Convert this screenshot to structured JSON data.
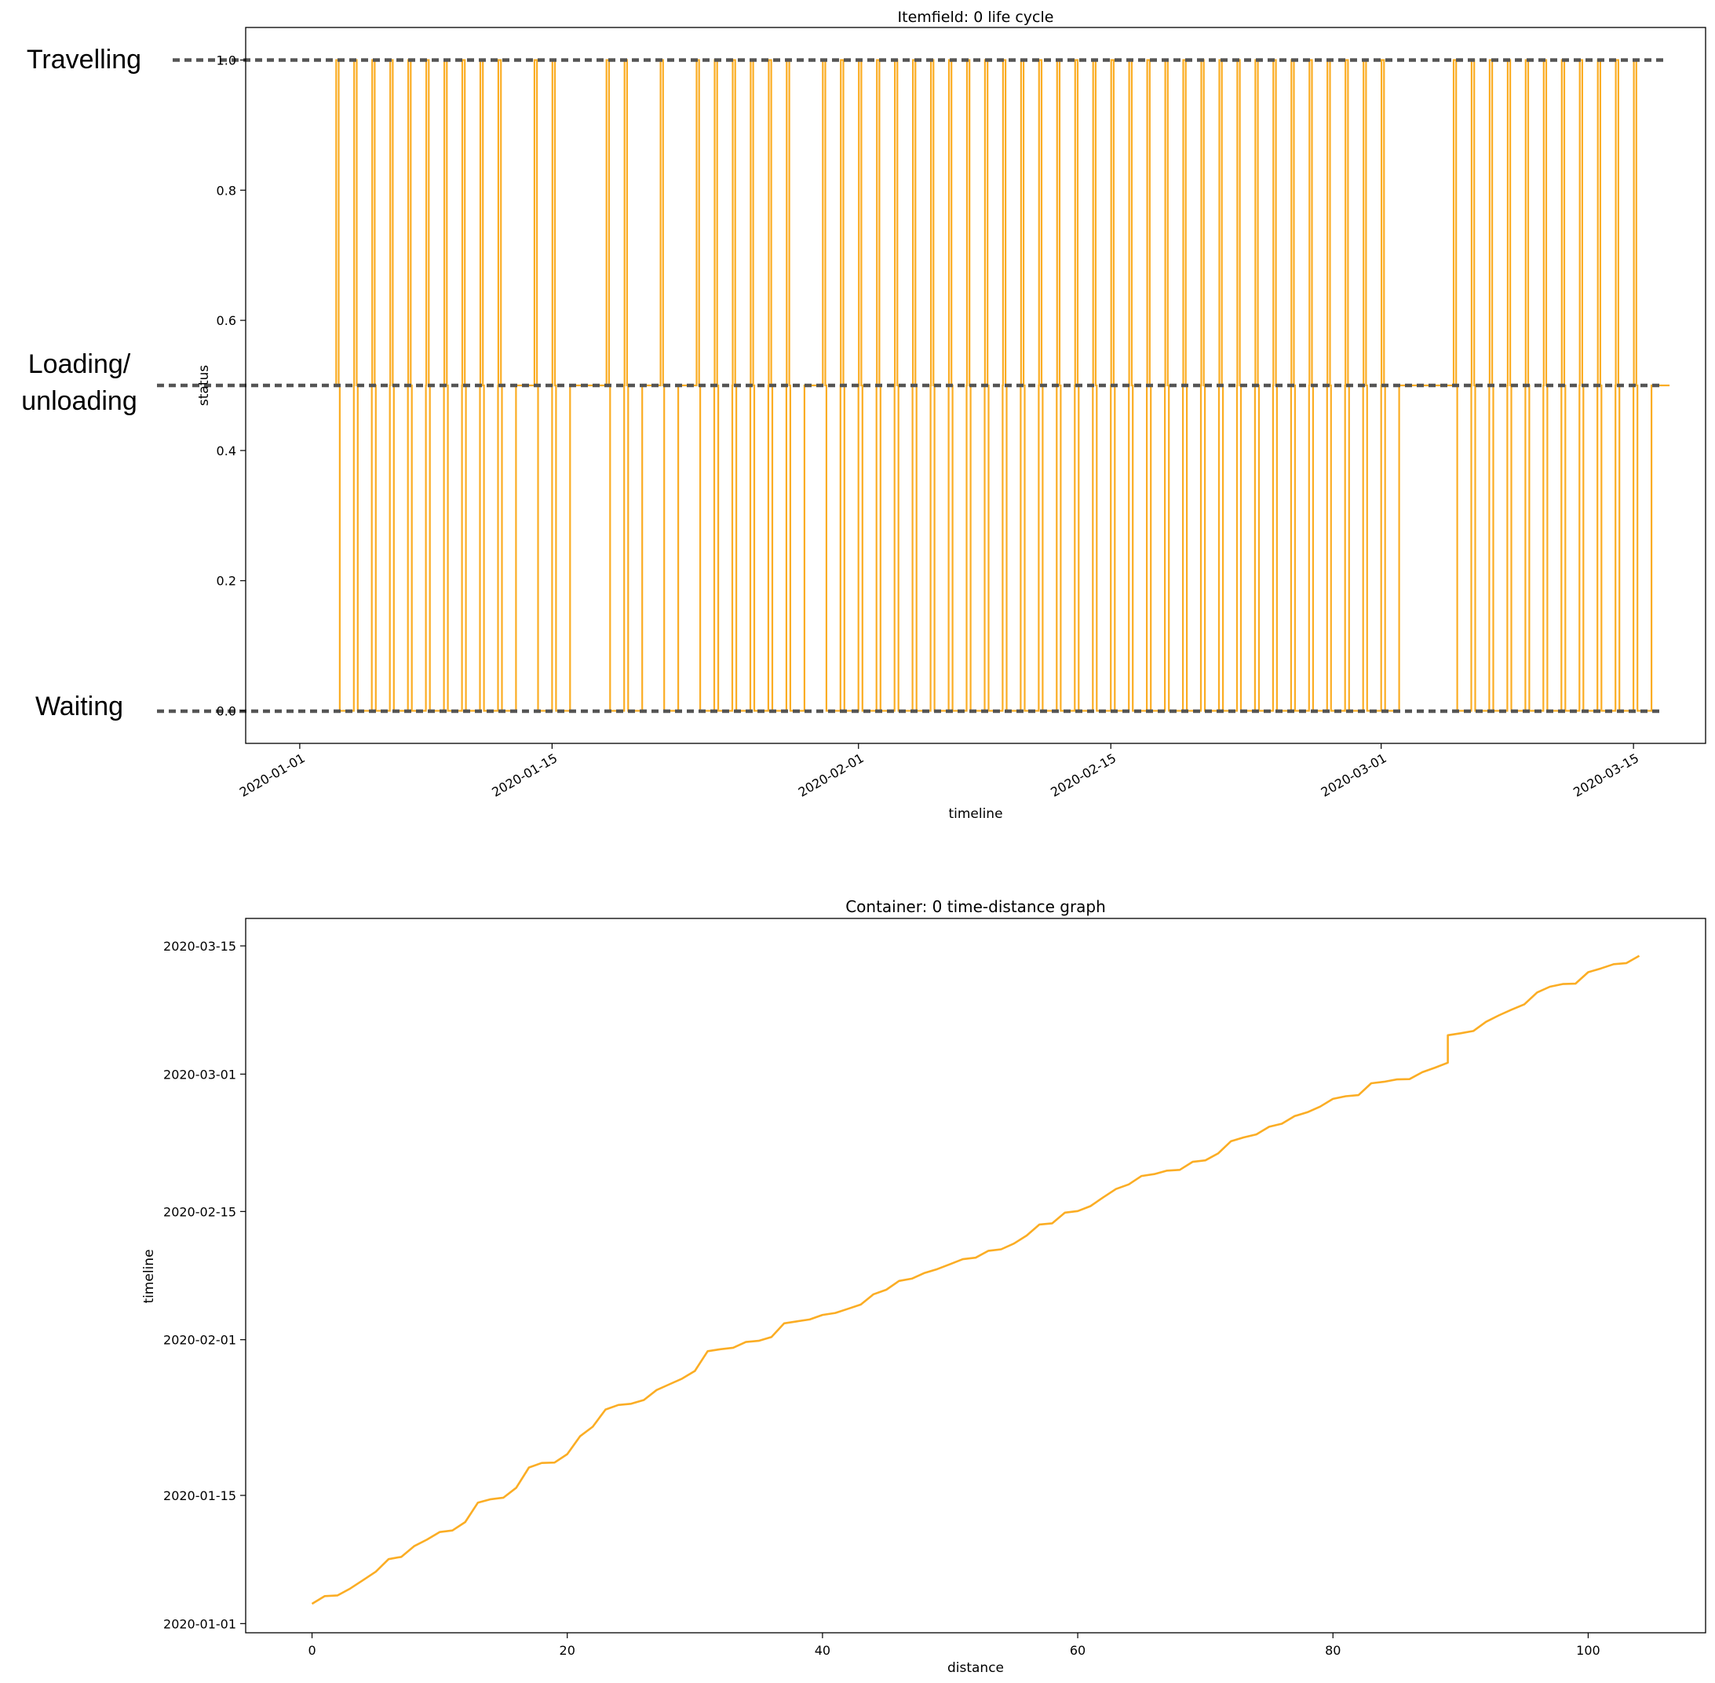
{
  "colors": {
    "series": "#fbad24",
    "reference_line": "#555555",
    "axis": "#000000",
    "text": "#000000"
  },
  "annotations": {
    "travelling": "Travelling",
    "loading_line1": "Loading/",
    "loading_line2": "unloading",
    "waiting": "Waiting"
  },
  "chart_data": [
    {
      "type": "line",
      "step": true,
      "title": "Itemfield: 0 life cycle",
      "xlabel": "timeline",
      "ylabel": "status",
      "x_axis": "date",
      "xlim": [
        "2019-12-29",
        "2020-03-19"
      ],
      "ylim": [
        -0.05,
        1.05
      ],
      "x_ticks": [
        "2020-01-01",
        "2020-01-15",
        "2020-02-01",
        "2020-02-15",
        "2020-03-01",
        "2020-03-15"
      ],
      "y_ticks": [
        "0.0",
        "0.2",
        "0.4",
        "0.6",
        "0.8",
        "1.0"
      ],
      "reference_lines": [
        1.0,
        0.5,
        0.0
      ],
      "grid": false,
      "series": [
        {
          "start": "2020-01-03",
          "end": "2020-03-16",
          "travel_starts": [
            "2020-01-03",
            "2020-01-04",
            "2020-01-05",
            "2020-01-06",
            "2020-01-07",
            "2020-01-08",
            "2020-01-09",
            "2020-01-10",
            "2020-01-11",
            "2020-01-12",
            "2020-01-14",
            "2020-01-15",
            "2020-01-18",
            "2020-01-19",
            "2020-01-21",
            "2020-01-23",
            "2020-01-24",
            "2020-01-25",
            "2020-01-26",
            "2020-01-27",
            "2020-01-28",
            "2020-01-30",
            "2020-01-31",
            "2020-02-01",
            "2020-02-02",
            "2020-02-03",
            "2020-02-04",
            "2020-02-05",
            "2020-02-06",
            "2020-02-07",
            "2020-02-08",
            "2020-02-09",
            "2020-02-10",
            "2020-02-11",
            "2020-02-12",
            "2020-02-13",
            "2020-02-14",
            "2020-02-15",
            "2020-02-16",
            "2020-02-17",
            "2020-02-18",
            "2020-02-19",
            "2020-02-20",
            "2020-02-21",
            "2020-02-22",
            "2020-02-23",
            "2020-02-24",
            "2020-02-25",
            "2020-02-26",
            "2020-02-27",
            "2020-02-28",
            "2020-02-29",
            "2020-03-01",
            "2020-03-05",
            "2020-03-06",
            "2020-03-07",
            "2020-03-08",
            "2020-03-09",
            "2020-03-10",
            "2020-03-11",
            "2020-03-12",
            "2020-03-13",
            "2020-03-14",
            "2020-03-15"
          ]
        }
      ]
    },
    {
      "type": "line",
      "title": "Container: 0 time-distance graph",
      "xlabel": "distance",
      "ylabel": "timeline",
      "y_axis": "date",
      "xlim": [
        -5.2,
        109.2
      ],
      "ylim": [
        "2019-12-31",
        "2020-03-18"
      ],
      "x_ticks": [
        0,
        20,
        40,
        60,
        80,
        100
      ],
      "y_ticks": [
        "2020-01-01",
        "2020-01-15",
        "2020-02-01",
        "2020-02-15",
        "2020-03-01",
        "2020-03-15"
      ],
      "grid": false,
      "series": [
        {
          "x": [
            0,
            1,
            2,
            3,
            4,
            5,
            6,
            7,
            8,
            9,
            10,
            11,
            12,
            13,
            14,
            15,
            16,
            17,
            18,
            19,
            20,
            21,
            22,
            23,
            24,
            25,
            26,
            27,
            28,
            29,
            30,
            31,
            32,
            33,
            34,
            35,
            36,
            37,
            38,
            39,
            40,
            41,
            42,
            43,
            44,
            45,
            46,
            47,
            48,
            49,
            50,
            51,
            52,
            53,
            54,
            55,
            56,
            57,
            58,
            59,
            60,
            61,
            62,
            63,
            64,
            65,
            66,
            67,
            68,
            69,
            70,
            71,
            72,
            73,
            74,
            75,
            76,
            77,
            78,
            79,
            80,
            81,
            82,
            83,
            84,
            85,
            86,
            87,
            88,
            89,
            89,
            90,
            91,
            92,
            93,
            94,
            95,
            96,
            97,
            98,
            99,
            100,
            101,
            102,
            103,
            104
          ],
          "y": [
            "2020-01-03 04:00",
            "2020-01-04 00:00",
            "2020-01-04 02:00",
            "2020-01-04 20:00",
            "2020-01-05 18:00",
            "2020-01-06 16:00",
            "2020-01-08 01:00",
            "2020-01-08 07:00",
            "2020-01-09 11:00",
            "2020-01-10 04:00",
            "2020-01-11 00:00",
            "2020-01-11 04:00",
            "2020-01-12 02:00",
            "2020-01-14 05:00",
            "2020-01-14 14:00",
            "2020-01-14 18:00",
            "2020-01-15 20:00",
            "2020-01-18 01:00",
            "2020-01-18 13:00",
            "2020-01-18 14:00",
            "2020-01-19 12:00",
            "2020-01-21 11:00",
            "2020-01-22 12:00",
            "2020-01-24 09:00",
            "2020-01-24 21:00",
            "2020-01-25 00:00",
            "2020-01-25 10:00",
            "2020-01-26 12:00",
            "2020-01-27 03:00",
            "2020-01-27 18:00",
            "2020-01-28 14:00",
            "2020-01-30 18:00",
            "2020-01-30 23:00",
            "2020-01-31 03:00",
            "2020-01-31 18:00",
            "2020-01-31 21:00",
            "2020-02-01 07:00",
            "2020-02-02 19:00",
            "2020-02-03 00:00",
            "2020-02-03 05:00",
            "2020-02-03 17:00",
            "2020-02-03 22:00",
            "2020-02-04 09:00",
            "2020-02-04 20:00",
            "2020-02-05 23:00",
            "2020-02-06 11:00",
            "2020-02-07 10:00",
            "2020-02-07 16:00",
            "2020-02-08 07:00",
            "2020-02-08 17:00",
            "2020-02-09 06:00",
            "2020-02-09 19:00",
            "2020-02-09 23:00",
            "2020-02-10 17:00",
            "2020-02-10 21:00",
            "2020-02-11 12:00",
            "2020-02-12 09:00",
            "2020-02-13 14:00",
            "2020-02-13 17:00",
            "2020-02-14 21:00",
            "2020-02-15 01:00",
            "2020-02-15 14:00",
            "2020-02-16 13:00",
            "2020-02-17 11:00",
            "2020-02-17 23:00",
            "2020-02-18 21:00",
            "2020-02-19 02:00",
            "2020-02-19 11:00",
            "2020-02-19 13:00",
            "2020-02-20 10:00",
            "2020-02-20 14:00",
            "2020-02-21 08:00",
            "2020-02-22 16:00",
            "2020-02-23 02:00",
            "2020-02-23 10:00",
            "2020-02-24 06:00",
            "2020-02-24 14:00",
            "2020-02-25 10:00",
            "2020-02-25 20:00",
            "2020-02-26 11:00",
            "2020-02-27 07:00",
            "2020-02-27 14:00",
            "2020-02-27 17:00",
            "2020-02-29 00:00",
            "2020-02-29 04:00",
            "2020-02-29 10:00",
            "2020-02-29 11:00",
            "2020-03-01 05:00",
            "2020-03-01 17:00",
            "2020-03-02 06:00",
            "2020-03-05 06:00",
            "2020-03-05 11:00",
            "2020-03-05 17:00",
            "2020-03-06 17:00",
            "2020-03-07 10:00",
            "2020-03-08 01:00",
            "2020-03-08 15:00",
            "2020-03-09 22:00",
            "2020-03-10 13:00",
            "2020-03-10 20:00",
            "2020-03-10 21:00",
            "2020-03-12 03:00",
            "2020-03-12 13:00",
            "2020-03-13 00:00",
            "2020-03-13 03:00",
            "2020-03-13 22:00"
          ]
        }
      ]
    }
  ]
}
